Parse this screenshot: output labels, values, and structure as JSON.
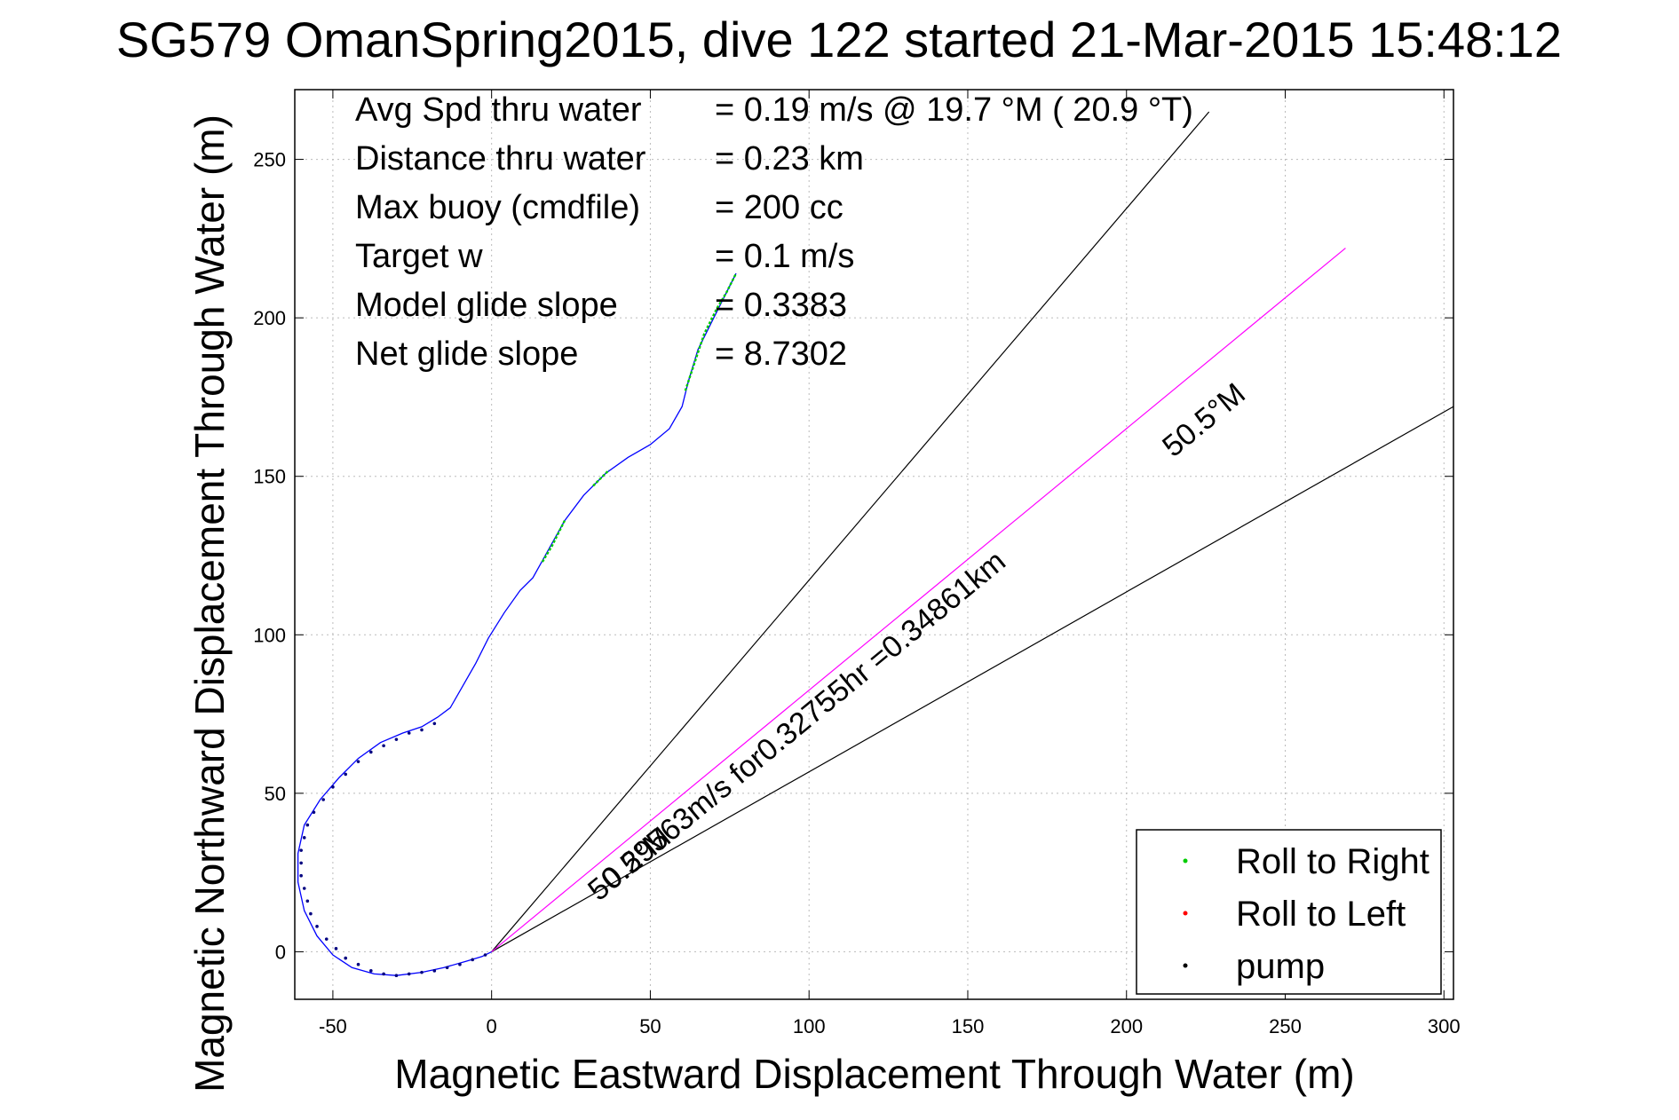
{
  "chart_data": {
    "type": "line",
    "title": "SG579 OmanSpring2015, dive 122 started 21-Mar-2015 15:48:12",
    "xlabel": "Magnetic Eastward Displacement Through Water (m)",
    "ylabel": "Magnetic Northward Displacement Through Water (m)",
    "xlim": [
      -62,
      303
    ],
    "ylim": [
      -15,
      272
    ],
    "xticks": [
      -50,
      0,
      50,
      100,
      150,
      200,
      250,
      300
    ],
    "yticks": [
      0,
      50,
      100,
      150,
      200,
      250
    ],
    "grid": true,
    "legend_position": "bottom-right",
    "legend": [
      {
        "label": "Roll to Right",
        "color": "#00cc00"
      },
      {
        "label": "Roll to Left",
        "color": "#ff0000"
      },
      {
        "label": "pump",
        "color": "#000000"
      }
    ],
    "info": [
      {
        "label": "Avg Spd thru water",
        "value": "=  0.19 m/s @  19.7 °M ( 20.9 °T)"
      },
      {
        "label": "Distance thru water",
        "value": "=  0.23 km"
      },
      {
        "label": "Max buoy (cmdfile)",
        "value": "= 200 cc"
      },
      {
        "label": "Target w",
        "value": "= 0.1 m/s"
      },
      {
        "label": "Model glide slope",
        "value": "= 0.3383"
      },
      {
        "label": "Net glide slope",
        "value": "= 8.7302"
      }
    ],
    "annotations": {
      "heading_upper": "50.5°M",
      "heading_lower": "50.5°M",
      "track_note": "0.29563m/s for0.32755hr =0.34861km"
    },
    "track": {
      "name": "dive track",
      "color": "#0000ff",
      "points": [
        [
          0,
          0
        ],
        [
          -3,
          -1.5
        ],
        [
          -8,
          -3
        ],
        [
          -15,
          -5
        ],
        [
          -22,
          -6.5
        ],
        [
          -30,
          -7.5
        ],
        [
          -37,
          -7
        ],
        [
          -44,
          -5
        ],
        [
          -50,
          -1
        ],
        [
          -55,
          5
        ],
        [
          -59,
          13
        ],
        [
          -61,
          22
        ],
        [
          -61,
          31
        ],
        [
          -59,
          40
        ],
        [
          -54,
          48
        ],
        [
          -48,
          55
        ],
        [
          -42,
          61
        ],
        [
          -35,
          66
        ],
        [
          -28,
          69
        ],
        [
          -22,
          71
        ],
        [
          -17,
          74
        ],
        [
          -13,
          77
        ],
        [
          -9,
          84
        ],
        [
          -5,
          91
        ],
        [
          -1,
          99
        ],
        [
          4,
          107
        ],
        [
          9,
          114
        ],
        [
          13,
          118
        ],
        [
          18,
          127
        ],
        [
          23,
          136
        ],
        [
          29,
          144
        ],
        [
          36,
          151
        ],
        [
          43,
          156
        ],
        [
          50,
          160
        ],
        [
          56,
          165
        ],
        [
          60,
          172
        ],
        [
          62,
          180
        ],
        [
          65,
          190
        ],
        [
          70,
          200
        ],
        [
          74,
          208
        ],
        [
          77,
          214
        ]
      ]
    },
    "roll_right_segments": [
      [
        [
          16,
          123
        ],
        [
          19,
          128
        ],
        [
          23,
          136
        ]
      ],
      [
        [
          32,
          147
        ],
        [
          35,
          150
        ],
        [
          37,
          152
        ]
      ],
      [
        [
          61,
          177
        ],
        [
          64,
          186
        ],
        [
          67,
          195
        ],
        [
          71,
          203
        ],
        [
          74,
          208
        ],
        [
          77,
          214
        ]
      ]
    ],
    "pump_points": [
      [
        -18,
        72
      ],
      [
        -22,
        70
      ],
      [
        -26,
        69
      ],
      [
        -30,
        67
      ],
      [
        -34,
        65
      ],
      [
        -38,
        63
      ],
      [
        -42,
        60
      ],
      [
        -46,
        56
      ],
      [
        -50,
        52
      ],
      [
        -53,
        48
      ],
      [
        -56,
        44
      ],
      [
        -58,
        40
      ],
      [
        -59,
        36
      ],
      [
        -60,
        32
      ],
      [
        -60,
        28
      ],
      [
        -60,
        24
      ],
      [
        -59,
        20
      ],
      [
        -58,
        16
      ],
      [
        -57,
        12
      ],
      [
        -55,
        8
      ],
      [
        -52,
        4
      ],
      [
        -49,
        1
      ],
      [
        -46,
        -2
      ],
      [
        -42,
        -4
      ],
      [
        -38,
        -6
      ],
      [
        -34,
        -7
      ],
      [
        -30,
        -7.5
      ],
      [
        -26,
        -7
      ],
      [
        -22,
        -6.5
      ],
      [
        -18,
        -6
      ],
      [
        -14,
        -5
      ],
      [
        -10,
        -4
      ],
      [
        -6,
        -2.5
      ],
      [
        -2,
        -1
      ]
    ],
    "pump_color": "#000080",
    "roll_left_points": [],
    "net_heading_line": {
      "start": [
        0,
        0
      ],
      "end": [
        269,
        222
      ],
      "color": "#ff00ff"
    },
    "bound_lines": [
      {
        "start": [
          0,
          0
        ],
        "end": [
          226,
          265
        ],
        "color": "#000000"
      },
      {
        "start": [
          0,
          0
        ],
        "end": [
          303,
          172
        ],
        "color": "#000000"
      }
    ]
  }
}
